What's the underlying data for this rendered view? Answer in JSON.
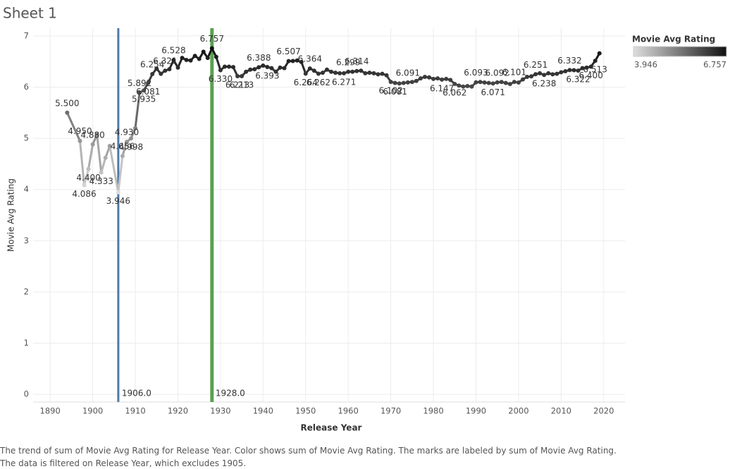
{
  "chart_data": {
    "type": "line",
    "title": "Sheet 1",
    "x_label": "Release Year",
    "y_label": "Movie Avg Rating",
    "caption": "The trend of sum of Movie Avg Rating for Release Year.  Color shows sum of Movie Avg Rating.  The marks are labeled by sum of Movie Avg Rating. The data is filtered on Release Year, which excludes 1905.",
    "x": [
      1894,
      1897,
      1898,
      1899,
      1900,
      1901,
      1902,
      1903,
      1904,
      1906,
      1907,
      1908,
      1909,
      1910,
      1911,
      1912,
      1913,
      1914,
      1915,
      1916,
      1917,
      1918,
      1919,
      1920,
      1921,
      1922,
      1923,
      1924,
      1925,
      1926,
      1927,
      1928,
      1929,
      1930,
      1931,
      1932,
      1933,
      1934,
      1935,
      1936,
      1937,
      1938,
      1939,
      1940,
      1941,
      1942,
      1943,
      1944,
      1945,
      1946,
      1947,
      1948,
      1949,
      1950,
      1951,
      1952,
      1953,
      1954,
      1955,
      1956,
      1957,
      1958,
      1959,
      1960,
      1961,
      1962,
      1963,
      1964,
      1965,
      1966,
      1967,
      1968,
      1969,
      1970,
      1971,
      1972,
      1973,
      1974,
      1975,
      1976,
      1977,
      1978,
      1979,
      1980,
      1981,
      1982,
      1983,
      1984,
      1985,
      1986,
      1987,
      1988,
      1989,
      1990,
      1991,
      1992,
      1993,
      1994,
      1995,
      1996,
      1997,
      1998,
      1999,
      2000,
      2001,
      2002,
      2003,
      2004,
      2005,
      2006,
      2007,
      2008,
      2009,
      2010,
      2011,
      2012,
      2013,
      2014,
      2015,
      2016,
      2017,
      2018,
      2019
    ],
    "values": [
      5.5,
      4.95,
      4.086,
      4.4,
      4.88,
      5.07,
      4.333,
      4.62,
      4.85,
      3.946,
      4.656,
      4.93,
      4.998,
      5.2,
      5.892,
      5.935,
      6.081,
      6.254,
      6.36,
      6.26,
      6.321,
      6.35,
      6.528,
      6.38,
      6.57,
      6.53,
      6.52,
      6.61,
      6.55,
      6.69,
      6.57,
      6.757,
      6.59,
      6.33,
      6.4,
      6.4,
      6.39,
      6.213,
      6.213,
      6.3,
      6.34,
      6.35,
      6.388,
      6.42,
      6.393,
      6.37,
      6.3,
      6.38,
      6.37,
      6.507,
      6.51,
      6.52,
      6.49,
      6.264,
      6.364,
      6.32,
      6.262,
      6.28,
      6.34,
      6.3,
      6.28,
      6.27,
      6.271,
      6.299,
      6.3,
      6.314,
      6.32,
      6.27,
      6.28,
      6.27,
      6.25,
      6.26,
      6.23,
      6.102,
      6.081,
      6.07,
      6.08,
      6.091,
      6.1,
      6.12,
      6.17,
      6.2,
      6.19,
      6.16,
      6.17,
      6.147,
      6.16,
      6.14,
      6.062,
      6.03,
      6.01,
      6.02,
      6.01,
      6.093,
      6.1,
      6.09,
      6.08,
      6.071,
      6.092,
      6.1,
      6.08,
      6.06,
      6.101,
      6.09,
      6.15,
      6.2,
      6.21,
      6.251,
      6.27,
      6.238,
      6.27,
      6.25,
      6.26,
      6.29,
      6.31,
      6.332,
      6.33,
      6.322,
      6.37,
      6.38,
      6.4,
      6.513,
      6.66
    ],
    "value_labels": [
      "5.500",
      "4.950",
      "4.086",
      "4.400",
      "4.880",
      null,
      "4.333",
      null,
      null,
      "3.946",
      "4.656",
      "4.930",
      "4.998",
      null,
      "5.892",
      "5.935",
      "6.081",
      "6.254",
      null,
      null,
      "6.321",
      null,
      "6.528",
      null,
      null,
      null,
      null,
      null,
      null,
      null,
      null,
      "6.757",
      null,
      "6.330",
      null,
      null,
      null,
      "6.213",
      "6.213",
      null,
      null,
      null,
      "6.388",
      null,
      "6.393",
      null,
      null,
      null,
      null,
      "6.507",
      null,
      null,
      null,
      "6.264",
      "6.364",
      null,
      "6.262",
      null,
      null,
      null,
      null,
      null,
      "6.271",
      "6.299",
      null,
      "6.314",
      null,
      null,
      null,
      null,
      null,
      null,
      null,
      "6.102",
      "6.081",
      null,
      null,
      "6.091",
      null,
      null,
      null,
      null,
      null,
      null,
      null,
      "6.147",
      null,
      null,
      "6.062",
      null,
      null,
      null,
      null,
      "6.093",
      null,
      null,
      null,
      "6.071",
      "6.092",
      null,
      null,
      null,
      "6.101",
      null,
      null,
      null,
      null,
      "6.251",
      null,
      "6.238",
      null,
      null,
      null,
      null,
      null,
      "6.332",
      null,
      "6.322",
      null,
      null,
      "6.400",
      "6.513",
      null
    ],
    "xlim": [
      1886,
      2025
    ],
    "ylim": [
      -0.15,
      7.15
    ],
    "xticks": [
      1890,
      1900,
      1910,
      1920,
      1930,
      1940,
      1950,
      1960,
      1970,
      1980,
      1990,
      2000,
      2010,
      2020
    ],
    "yticks": [
      0,
      1,
      2,
      3,
      4,
      5,
      6,
      7
    ],
    "grid": true,
    "reference_lines": [
      {
        "value": 1906,
        "label": "1906.0",
        "color": "#4e79a7"
      },
      {
        "value": 1928,
        "label": "1928.0",
        "color": "#59a14f"
      }
    ],
    "legend": {
      "title": "Movie Avg Rating",
      "min": 3.946,
      "max": 6.757,
      "colors": [
        "#dedede",
        "#111111"
      ],
      "position": "top-right"
    }
  }
}
